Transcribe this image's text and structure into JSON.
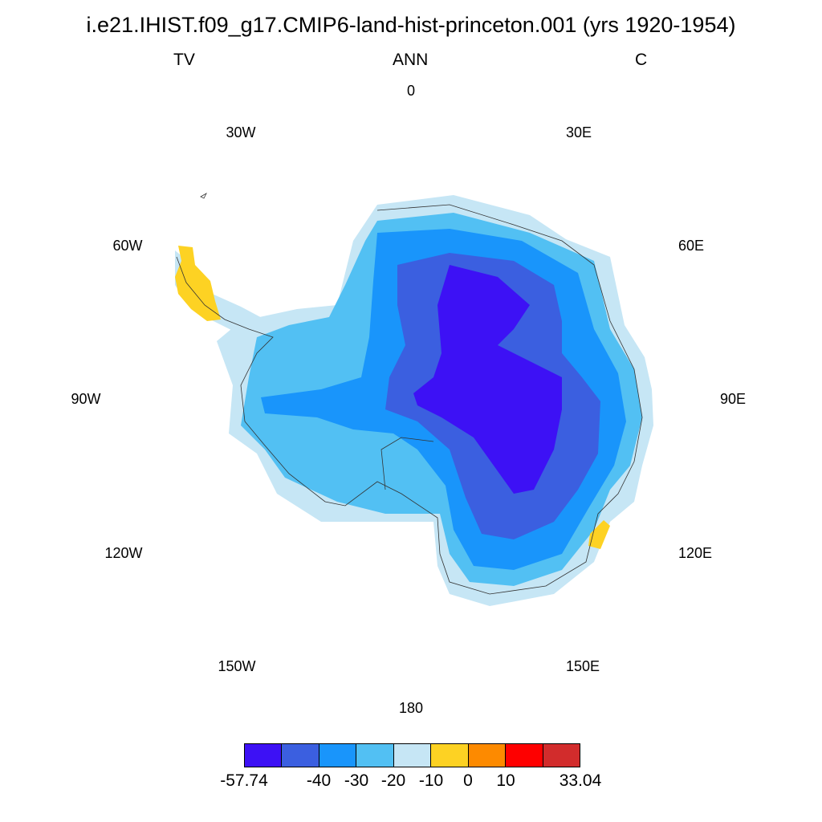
{
  "title": "i.e21.IHIST.f09_g17.CMIP6-land-hist-princeton.001 (yrs 1920-1954)",
  "subtitles": {
    "left": "TV",
    "center": "ANN",
    "right": "C"
  },
  "longitude_labels": [
    "0",
    "30E",
    "60E",
    "90E",
    "120E",
    "150E",
    "180",
    "150W",
    "120W",
    "90W",
    "60W",
    "30W"
  ],
  "colorbar": {
    "colors": [
      "#3d11f5",
      "#3b5fe0",
      "#1995fb",
      "#52c0f3",
      "#c6e6f5",
      "#fdd223",
      "#fd8a00",
      "#fe0000",
      "#d22c2c"
    ],
    "labels": [
      "-57.74",
      "-40",
      "-30",
      "-20",
      "-10",
      "0",
      "10",
      "33.04"
    ]
  },
  "map_fill": {
    "level_1": "#3d11f5",
    "level_2": "#3b5fe0",
    "level_3": "#1995fb",
    "level_4": "#52c0f3",
    "level_5": "#c6e6f5",
    "positive": "#fdd223",
    "coastline": "#333333"
  }
}
